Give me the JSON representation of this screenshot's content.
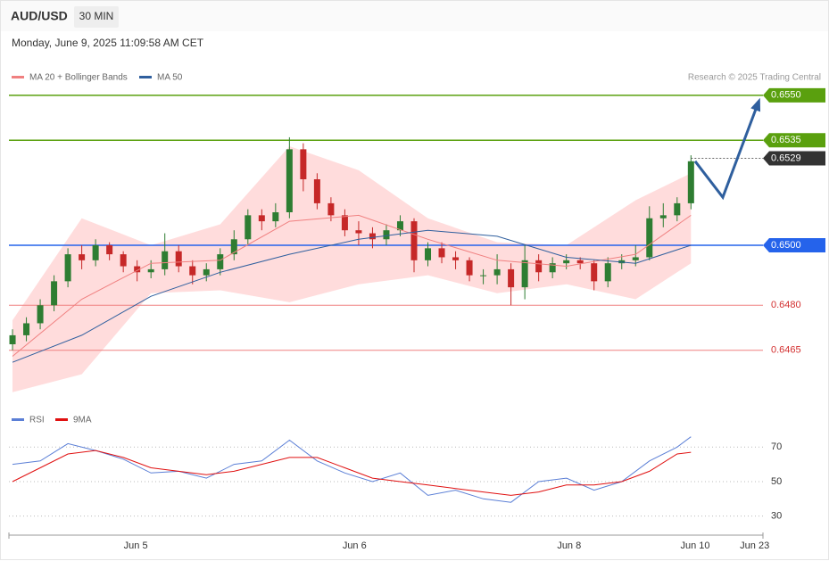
{
  "chart_data": [
    {
      "type": "candlestick",
      "title": "AUD/USD",
      "subtitle": "30 MIN",
      "date": "Monday, June 9, 2025 11:09:58 AM CET",
      "credit": "Research © 2025 Trading Central",
      "ylim": [
        0.6445,
        0.6555
      ],
      "xlim": [
        -0.26,
        54.2
      ],
      "xticks": [
        {
          "value": 8.9,
          "label": "Jun 5"
        },
        {
          "value": 24.7,
          "label": "Jun 6"
        },
        {
          "value": 40.2,
          "label": "Jun 8"
        },
        {
          "value": 49.3,
          "label": "Jun 10"
        },
        {
          "value": 53.6,
          "label": "Jun 23"
        }
      ],
      "up_color": "#2e7d32",
      "down_color": "#c62828",
      "candles": [
        [
          0.6467,
          0.6472,
          0.6465,
          0.647
        ],
        [
          0.647,
          0.6476,
          0.6468,
          0.6474
        ],
        [
          0.6474,
          0.6482,
          0.6472,
          0.648
        ],
        [
          0.648,
          0.649,
          0.6478,
          0.6488
        ],
        [
          0.6488,
          0.6499,
          0.6486,
          0.6497
        ],
        [
          0.6497,
          0.65,
          0.6492,
          0.6495
        ],
        [
          0.6495,
          0.6502,
          0.6493,
          0.65
        ],
        [
          0.65,
          0.6501,
          0.6495,
          0.6497
        ],
        [
          0.6497,
          0.6498,
          0.6491,
          0.6493
        ],
        [
          0.6493,
          0.6495,
          0.6488,
          0.6491
        ],
        [
          0.6491,
          0.6495,
          0.6489,
          0.6492
        ],
        [
          0.6492,
          0.6504,
          0.649,
          0.6498
        ],
        [
          0.6498,
          0.65,
          0.6491,
          0.6493
        ],
        [
          0.6493,
          0.6495,
          0.6487,
          0.649
        ],
        [
          0.649,
          0.6494,
          0.6488,
          0.6492
        ],
        [
          0.6492,
          0.6499,
          0.649,
          0.6497
        ],
        [
          0.6497,
          0.6505,
          0.6495,
          0.6502
        ],
        [
          0.6502,
          0.6512,
          0.65,
          0.651
        ],
        [
          0.651,
          0.6512,
          0.6505,
          0.6508
        ],
        [
          0.6508,
          0.6514,
          0.6506,
          0.6511
        ],
        [
          0.6511,
          0.6536,
          0.6509,
          0.6532
        ],
        [
          0.6532,
          0.6534,
          0.6518,
          0.6522
        ],
        [
          0.6522,
          0.6524,
          0.6512,
          0.6514
        ],
        [
          0.6514,
          0.6516,
          0.6508,
          0.651
        ],
        [
          0.651,
          0.6512,
          0.6503,
          0.6505
        ],
        [
          0.6505,
          0.6508,
          0.65,
          0.6504
        ],
        [
          0.6504,
          0.6506,
          0.6499,
          0.6502
        ],
        [
          0.6502,
          0.6507,
          0.65,
          0.6505
        ],
        [
          0.6505,
          0.651,
          0.6503,
          0.6508
        ],
        [
          0.6508,
          0.6509,
          0.6491,
          0.6495
        ],
        [
          0.6495,
          0.6501,
          0.6493,
          0.6499
        ],
        [
          0.6499,
          0.6501,
          0.6494,
          0.6496
        ],
        [
          0.6496,
          0.6498,
          0.6492,
          0.6495
        ],
        [
          0.6495,
          0.6496,
          0.6488,
          0.649
        ],
        [
          0.649,
          0.6492,
          0.6487,
          0.649
        ],
        [
          0.649,
          0.6497,
          0.6487,
          0.6492
        ],
        [
          0.6492,
          0.6494,
          0.648,
          0.6486
        ],
        [
          0.6486,
          0.65,
          0.6482,
          0.6495
        ],
        [
          0.6495,
          0.6497,
          0.6488,
          0.6491
        ],
        [
          0.6491,
          0.6496,
          0.6489,
          0.6494
        ],
        [
          0.6494,
          0.6497,
          0.6492,
          0.6495
        ],
        [
          0.6495,
          0.6496,
          0.6492,
          0.6494
        ],
        [
          0.6494,
          0.6495,
          0.6485,
          0.6488
        ],
        [
          0.6488,
          0.6496,
          0.6486,
          0.6494
        ],
        [
          0.6494,
          0.6497,
          0.6492,
          0.6495
        ],
        [
          0.6495,
          0.65,
          0.6493,
          0.6496
        ],
        [
          0.6496,
          0.6513,
          0.6495,
          0.6509
        ],
        [
          0.6509,
          0.6514,
          0.6506,
          0.651
        ],
        [
          0.651,
          0.6516,
          0.6508,
          0.6514
        ],
        [
          0.6514,
          0.653,
          0.6512,
          0.6528
        ]
      ],
      "series": [
        {
          "name": "MA 20 + Bollinger Bands",
          "color": "#f08080",
          "band_color": "#ffdcdc",
          "x": [
            0,
            5,
            10,
            15,
            20,
            25,
            30,
            35,
            40,
            45,
            49
          ],
          "values": [
            0.6463,
            0.6482,
            0.6494,
            0.6495,
            0.6508,
            0.651,
            0.6502,
            0.6495,
            0.6493,
            0.6497,
            0.651
          ],
          "upper": [
            0.6475,
            0.6509,
            0.65,
            0.6507,
            0.6533,
            0.6525,
            0.6509,
            0.6501,
            0.65,
            0.6515,
            0.6524
          ],
          "lower": [
            0.6451,
            0.6457,
            0.6484,
            0.6485,
            0.6481,
            0.6487,
            0.649,
            0.6484,
            0.6487,
            0.6482,
            0.6494
          ]
        },
        {
          "name": "MA 50",
          "color": "#2f5f9e",
          "x": [
            0,
            5,
            10,
            15,
            20,
            25,
            30,
            35,
            40,
            45,
            49
          ],
          "values": [
            0.6461,
            0.647,
            0.6483,
            0.6491,
            0.6497,
            0.6502,
            0.6505,
            0.6503,
            0.6496,
            0.6494,
            0.65
          ]
        }
      ],
      "levels": [
        {
          "value": 0.655,
          "label": "0.6550",
          "color": "#5aa00e"
        },
        {
          "value": 0.6535,
          "label": "0.6535",
          "color": "#5aa00e"
        },
        {
          "value": 0.65,
          "label": "0.6500",
          "color": "#2563eb"
        },
        {
          "value": 0.648,
          "label": "0.6480",
          "color": "#f08080"
        },
        {
          "value": 0.6465,
          "label": "0.6465",
          "color": "#f08080"
        }
      ],
      "current": {
        "value": 0.6529,
        "label": "0.6529",
        "color": "#333333"
      },
      "projection": {
        "x": [
          49.3,
          51.3,
          53.9
        ],
        "values": [
          0.6528,
          0.6516,
          0.6548
        ],
        "color": "#2f5f9e"
      }
    },
    {
      "type": "line",
      "ylim": [
        20,
        81
      ],
      "yticks": [
        70,
        50,
        30
      ],
      "xlim": [
        -0.26,
        54.2
      ],
      "x": [
        0,
        2,
        4,
        6,
        8,
        10,
        12,
        14,
        16,
        18,
        20,
        22,
        24,
        26,
        28,
        30,
        32,
        34,
        36,
        38,
        40,
        42,
        44,
        46,
        48,
        49
      ],
      "series": [
        {
          "name": "RSI",
          "color": "#5b7fd6",
          "values": [
            60,
            62,
            72,
            68,
            63,
            55,
            56,
            52,
            60,
            62,
            74,
            62,
            55,
            50,
            55,
            42,
            45,
            40,
            38,
            50,
            52,
            45,
            50,
            62,
            70,
            76
          ]
        },
        {
          "name": "9MA",
          "color": "#e01010",
          "values": [
            50,
            58,
            66,
            68,
            64,
            58,
            56,
            54,
            56,
            60,
            64,
            64,
            58,
            52,
            50,
            48,
            46,
            44,
            42,
            44,
            48,
            48,
            50,
            56,
            66,
            67
          ]
        }
      ]
    }
  ]
}
